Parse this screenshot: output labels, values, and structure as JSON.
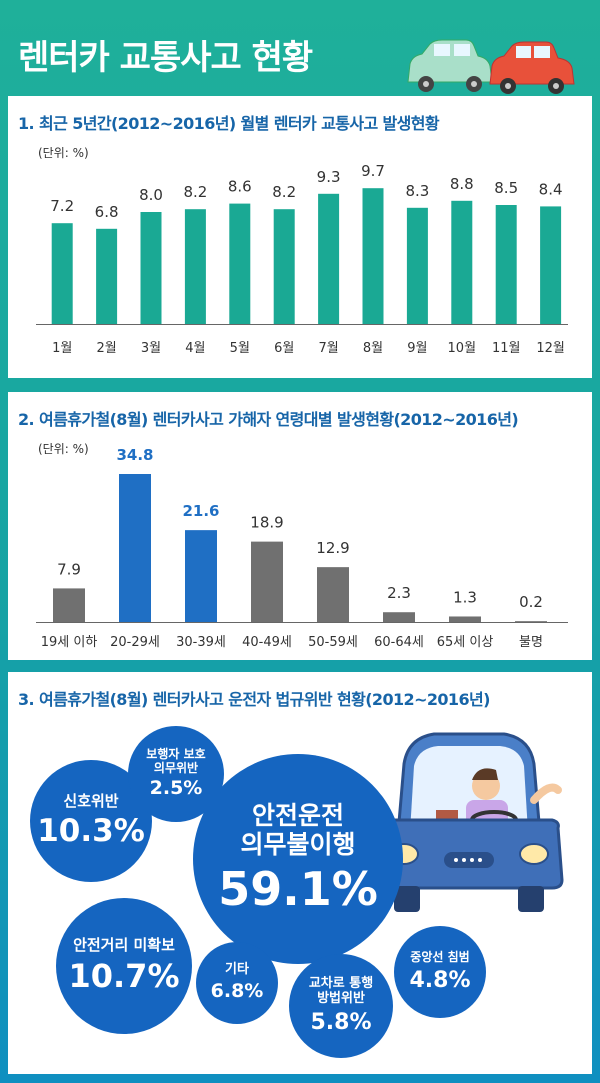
{
  "page_title": "렌터카 교통사고 현황",
  "chart_data": [
    {
      "type": "bar",
      "title": "1. 최근 5년간(2012~2016년) 월별 렌터카 교통사고 발생현황",
      "unit": "(단위: %)",
      "categories": [
        "1월",
        "2월",
        "3월",
        "4월",
        "5월",
        "6월",
        "7월",
        "8월",
        "9월",
        "10월",
        "11월",
        "12월"
      ],
      "values": [
        7.2,
        6.8,
        8.0,
        8.2,
        8.6,
        8.2,
        9.3,
        9.7,
        8.3,
        8.8,
        8.5,
        8.4
      ],
      "value_labels": [
        "7.2",
        "6.8",
        "8.0",
        "8.2",
        "8.6",
        "8.2",
        "9.3",
        "9.7",
        "8.3",
        "8.8",
        "8.5",
        "8.4"
      ],
      "bar_color": "#1aa994",
      "ylim": [
        0,
        10
      ]
    },
    {
      "type": "bar",
      "title": "2. 여름휴가철(8월) 렌터카사고 가해자 연령대별 발생현황(2012~2016년)",
      "unit": "(단위: %)",
      "categories": [
        "19세 이하",
        "20-29세",
        "30-39세",
        "40-49세",
        "50-59세",
        "60-64세",
        "65세 이상",
        "불명"
      ],
      "values": [
        7.9,
        34.8,
        21.6,
        18.9,
        12.9,
        2.3,
        1.3,
        0.2
      ],
      "value_labels": [
        "7.9",
        "34.8",
        "21.6",
        "18.9",
        "12.9",
        "2.3",
        "1.3",
        "0.2"
      ],
      "highlight": [
        false,
        true,
        true,
        false,
        false,
        false,
        false,
        false
      ],
      "bar_color": "#707070",
      "highlight_color": "#1f6fc4",
      "ylim": [
        0,
        36
      ]
    },
    {
      "type": "bubble",
      "title": "3. 여름휴가철(8월) 렌터카사고 운전자 법규위반 현황(2012~2016년)",
      "items": [
        {
          "label": "안전운전\n의무불이행",
          "value": 59.1,
          "value_label": "59.1%"
        },
        {
          "label": "안전거리 미확보",
          "value": 10.7,
          "value_label": "10.7%"
        },
        {
          "label": "신호위반",
          "value": 10.3,
          "value_label": "10.3%"
        },
        {
          "label": "기타",
          "value": 6.8,
          "value_label": "6.8%"
        },
        {
          "label": "교차로 통행\n방법위반",
          "value": 5.8,
          "value_label": "5.8%"
        },
        {
          "label": "중앙선 침범",
          "value": 4.8,
          "value_label": "4.8%"
        },
        {
          "label": "보행자 보호\n의무위반",
          "value": 2.5,
          "value_label": "2.5%"
        }
      ],
      "bubble_color": "#1565c0"
    }
  ]
}
